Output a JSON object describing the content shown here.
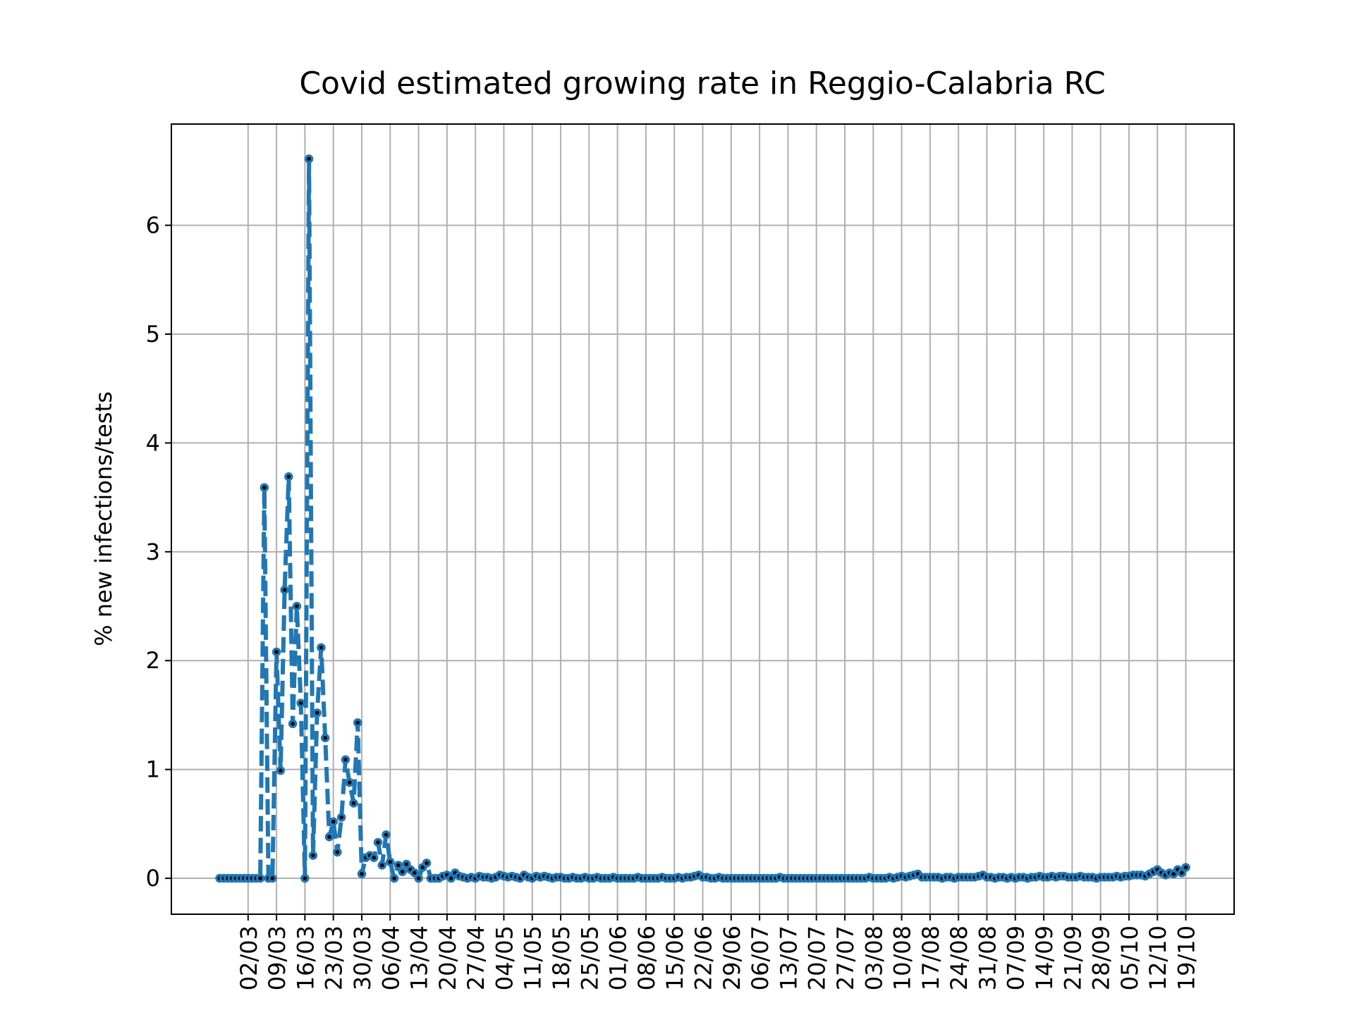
{
  "chart_data": {
    "type": "line",
    "title": "Covid estimated growing rate in Reggio-Calabria RC",
    "y_label": "% new infections/tests",
    "color": "#1f77b4",
    "marker_color": "#000000",
    "grid": true,
    "x": [
      "24/02",
      "25/02",
      "26/02",
      "27/02",
      "28/02",
      "29/02",
      "01/03",
      "02/03",
      "03/03",
      "04/03",
      "05/03",
      "06/03",
      "07/03",
      "08/03",
      "09/03",
      "10/03",
      "11/03",
      "12/03",
      "13/03",
      "14/03",
      "15/03",
      "16/03",
      "17/03",
      "18/03",
      "19/03",
      "20/03",
      "21/03",
      "22/03",
      "23/03",
      "24/03",
      "25/03",
      "26/03",
      "27/03",
      "28/03",
      "29/03",
      "30/03",
      "31/03",
      "01/04",
      "02/04",
      "03/04",
      "04/04",
      "05/04",
      "06/04",
      "07/04",
      "08/04",
      "09/04",
      "10/04",
      "11/04",
      "12/04",
      "13/04",
      "14/04",
      "15/04",
      "16/04",
      "17/04",
      "18/04",
      "19/04",
      "20/04",
      "21/04",
      "22/04",
      "23/04",
      "24/04",
      "25/04",
      "26/04",
      "27/04",
      "28/04",
      "29/04",
      "30/04",
      "01/05",
      "02/05",
      "03/05",
      "04/05",
      "05/05",
      "06/05",
      "07/05",
      "08/05",
      "09/05",
      "10/05",
      "11/05",
      "12/05",
      "13/05",
      "14/05",
      "15/05",
      "16/05",
      "17/05",
      "18/05",
      "19/05",
      "20/05",
      "21/05",
      "22/05",
      "23/05",
      "24/05",
      "25/05",
      "26/05",
      "27/05",
      "28/05",
      "29/05",
      "30/05",
      "31/05",
      "01/06",
      "02/06",
      "03/06",
      "04/06",
      "05/06",
      "06/06",
      "07/06",
      "08/06",
      "09/06",
      "10/06",
      "11/06",
      "12/06",
      "13/06",
      "14/06",
      "15/06",
      "16/06",
      "17/06",
      "18/06",
      "19/06",
      "20/06",
      "21/06",
      "22/06",
      "23/06",
      "24/06",
      "25/06",
      "26/06",
      "27/06",
      "28/06",
      "29/06",
      "30/06",
      "01/07",
      "02/07",
      "03/07",
      "04/07",
      "05/07",
      "06/07",
      "07/07",
      "08/07",
      "09/07",
      "10/07",
      "11/07",
      "12/07",
      "13/07",
      "14/07",
      "15/07",
      "16/07",
      "17/07",
      "18/07",
      "19/07",
      "20/07",
      "21/07",
      "22/07",
      "23/07",
      "24/07",
      "25/07",
      "26/07",
      "27/07",
      "28/07",
      "29/07",
      "30/07",
      "31/07",
      "01/08",
      "02/08",
      "03/08",
      "04/08",
      "05/08",
      "06/08",
      "07/08",
      "08/08",
      "09/08",
      "10/08",
      "11/08",
      "12/08",
      "13/08",
      "14/08",
      "15/08",
      "16/08",
      "17/08",
      "18/08",
      "19/08",
      "20/08",
      "21/08",
      "22/08",
      "23/08",
      "24/08",
      "25/08",
      "26/08",
      "27/08",
      "28/08",
      "29/08",
      "30/08",
      "31/08",
      "01/09",
      "02/09",
      "03/09",
      "04/09",
      "05/09",
      "06/09",
      "07/09",
      "08/09",
      "09/09",
      "10/09",
      "11/09",
      "12/09",
      "13/09",
      "14/09",
      "15/09",
      "16/09",
      "17/09",
      "18/09",
      "19/09",
      "20/09",
      "21/09",
      "22/09",
      "23/09",
      "24/09",
      "25/09",
      "26/09",
      "27/09",
      "28/09",
      "29/09",
      "30/09",
      "01/10",
      "02/10",
      "03/10",
      "04/10",
      "05/10",
      "06/10",
      "07/10",
      "08/10",
      "09/10",
      "10/10",
      "11/10",
      "12/10",
      "13/10",
      "14/10",
      "15/10",
      "16/10",
      "17/10",
      "18/10",
      "19/10"
    ],
    "values": [
      0,
      0,
      0,
      0,
      0,
      0,
      0,
      0,
      0,
      0,
      0,
      3.59,
      0,
      0,
      2.08,
      0.99,
      2.65,
      3.69,
      1.42,
      2.5,
      1.61,
      0,
      6.61,
      0.21,
      1.52,
      2.12,
      1.29,
      0.38,
      0.52,
      0.24,
      0.56,
      1.09,
      0.88,
      0.69,
      1.43,
      0.04,
      0.19,
      0.21,
      0.19,
      0.33,
      0.12,
      0.4,
      0.15,
      0,
      0.12,
      0.06,
      0.13,
      0.08,
      0.05,
      0,
      0.1,
      0.14,
      0,
      0,
      0,
      0.02,
      0.03,
      0,
      0.05,
      0.02,
      0.01,
      0,
      0.01,
      0,
      0.02,
      0.01,
      0.01,
      0,
      0.01,
      0.03,
      0.02,
      0.01,
      0.02,
      0.01,
      0,
      0.03,
      0.01,
      0,
      0.02,
      0.01,
      0.02,
      0.01,
      0,
      0.01,
      0.01,
      0,
      0,
      0.01,
      0,
      0,
      0.01,
      0,
      0,
      0.01,
      0,
      0,
      0,
      0.01,
      0,
      0,
      0,
      0,
      0,
      0.01,
      0,
      0,
      0,
      0,
      0,
      0.01,
      0,
      0,
      0,
      0.01,
      0,
      0.01,
      0.01,
      0.02,
      0.03,
      0.01,
      0.01,
      0,
      0,
      0.01,
      0,
      0,
      0,
      0,
      0,
      0,
      0,
      0,
      0,
      0,
      0,
      0,
      0,
      0,
      0.01,
      0,
      0,
      0,
      0,
      0,
      0,
      0,
      0,
      0,
      0,
      0,
      0,
      0,
      0,
      0,
      0,
      0,
      0,
      0,
      0,
      0,
      0.01,
      0,
      0,
      0,
      0,
      0.01,
      0,
      0.01,
      0.02,
      0.01,
      0.02,
      0.03,
      0.04,
      0.01,
      0.01,
      0.01,
      0.01,
      0.01,
      0,
      0.01,
      0.01,
      0,
      0.01,
      0.01,
      0.01,
      0.01,
      0.01,
      0.02,
      0.03,
      0.01,
      0.01,
      0,
      0.01,
      0.01,
      0,
      0.01,
      0,
      0.01,
      0.01,
      0,
      0.01,
      0.01,
      0.02,
      0.01,
      0.01,
      0.02,
      0.01,
      0.02,
      0.02,
      0.01,
      0.01,
      0.01,
      0.02,
      0.01,
      0.01,
      0.01,
      0,
      0.01,
      0.01,
      0.01,
      0.01,
      0.02,
      0.01,
      0.02,
      0.02,
      0.03,
      0.03,
      0.03,
      0.02,
      0.04,
      0.06,
      0.08,
      0.05,
      0.03,
      0.05,
      0.04,
      0.08,
      0.05,
      0.1
    ],
    "xticks": [
      "02/03",
      "09/03",
      "16/03",
      "23/03",
      "30/03",
      "06/04",
      "13/04",
      "20/04",
      "27/04",
      "04/05",
      "11/05",
      "18/05",
      "25/05",
      "01/06",
      "08/06",
      "15/06",
      "22/06",
      "29/06",
      "06/07",
      "13/07",
      "20/07",
      "27/07",
      "03/08",
      "10/08",
      "17/08",
      "24/08",
      "31/08",
      "07/09",
      "14/09",
      "21/09",
      "28/09",
      "05/10",
      "12/10",
      "19/10"
    ],
    "ylim": [
      -0.33,
      6.93
    ],
    "yticks": [
      0,
      1,
      2,
      3,
      4,
      5,
      6
    ]
  }
}
